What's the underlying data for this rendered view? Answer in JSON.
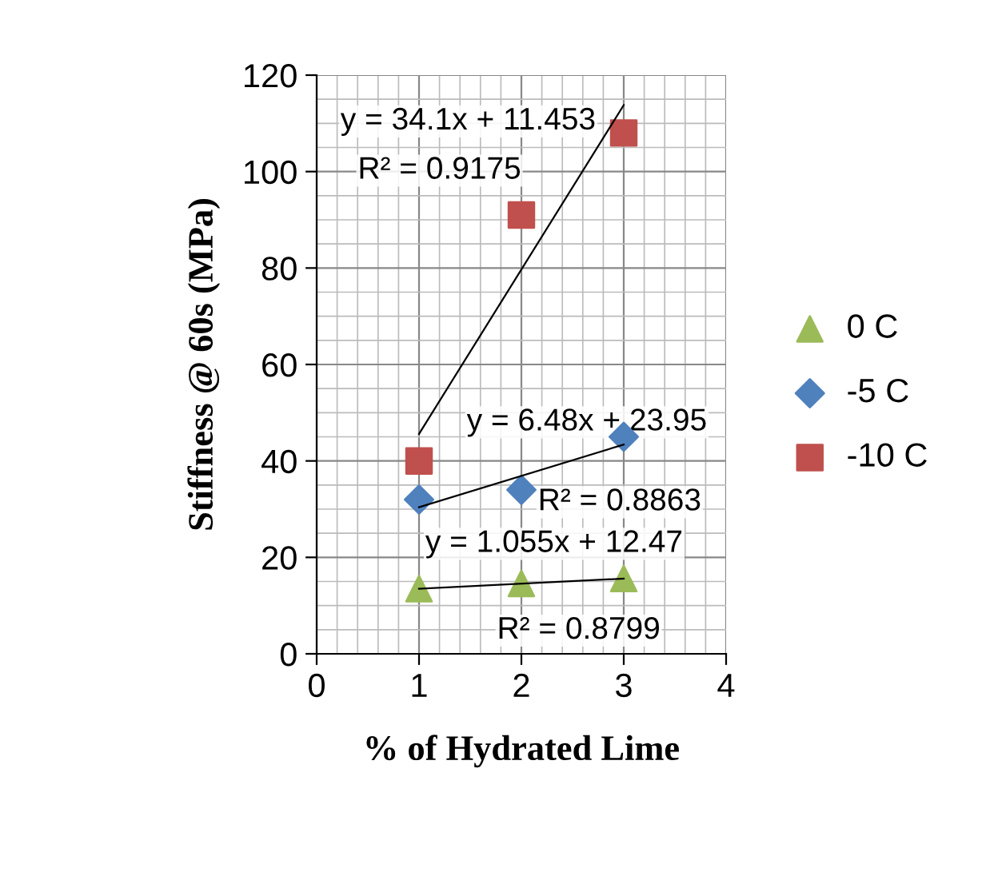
{
  "chart_data": {
    "type": "scatter",
    "xlabel": "% of Hydrated Lime",
    "ylabel": "Stiffness @ 60s (MPa)",
    "xlim": [
      0,
      4
    ],
    "xticks": [
      0,
      1,
      2,
      3,
      4
    ],
    "ylim": [
      0,
      120
    ],
    "yticks": [
      0,
      20,
      40,
      60,
      80,
      100,
      120
    ],
    "grid": true,
    "legend": "right",
    "series": [
      {
        "name": "0 C",
        "color": "#9bbb59",
        "marker": "triangle",
        "x": [
          1,
          2,
          3
        ],
        "values": [
          13.5,
          14.6,
          15.6
        ]
      },
      {
        "name": "-5 C",
        "color": "#4f81bd",
        "marker": "diamond",
        "x": [
          1,
          2,
          3
        ],
        "values": [
          32,
          34,
          45
        ]
      },
      {
        "name": "-10 C",
        "color": "#c0504d",
        "marker": "square",
        "x": [
          1,
          2,
          3
        ],
        "values": [
          40,
          91,
          108
        ]
      },
      {
        "type": "line",
        "color": "#000000",
        "x": [
          1,
          3
        ],
        "values": [
          13.5,
          15.6
        ]
      },
      {
        "type": "line",
        "color": "#000000",
        "x": [
          1,
          3
        ],
        "values": [
          30.4,
          43.4
        ]
      },
      {
        "type": "line",
        "color": "#000000",
        "x": [
          1,
          3
        ],
        "values": [
          45.6,
          113.8
        ]
      }
    ],
    "annotations": [
      "y = 34.1x + 11.453",
      "R² = 0.9175",
      "y = 6.48x + 23.95",
      "R² = 0.8863",
      "y = 1.055x + 12.47",
      "R² = 0.8799"
    ]
  }
}
